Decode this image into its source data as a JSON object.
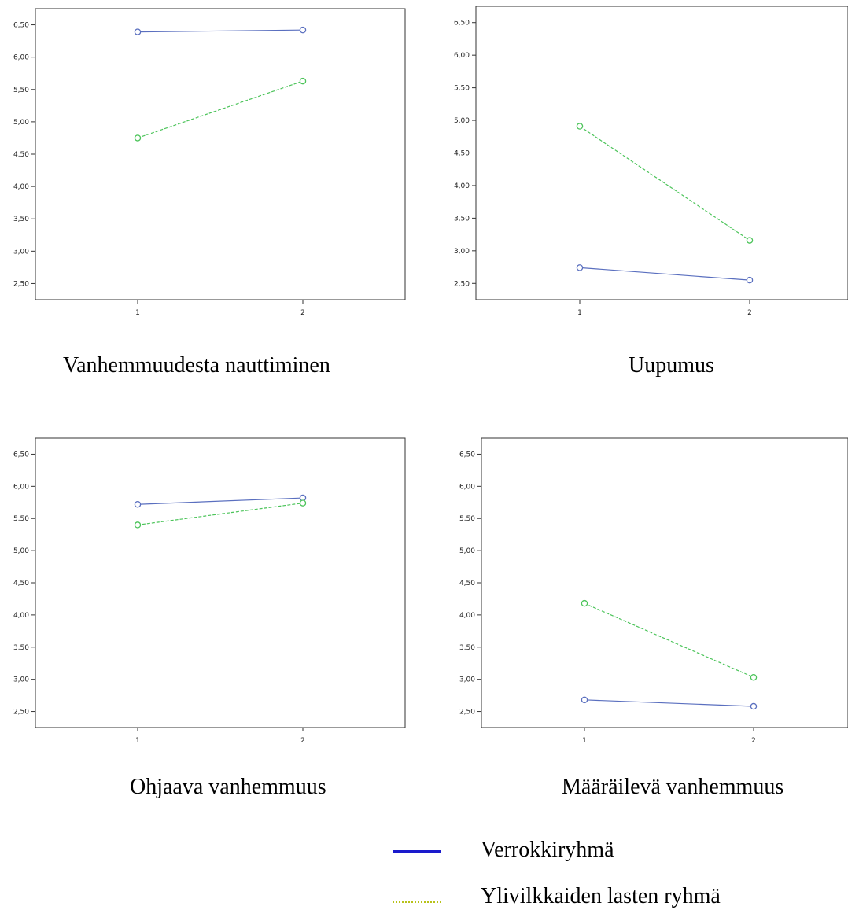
{
  "colors": {
    "series_control": "#5a6fbf",
    "series_adhd": "#4cc45a",
    "legend_control": "#1a1acc",
    "legend_adhd": "#b8c21a"
  },
  "chart_data": [
    {
      "type": "line",
      "caption": "Vanhemmuudesta nauttiminen",
      "x": [
        1,
        2
      ],
      "ylim": [
        2.25,
        6.75
      ],
      "yticks": [
        "2,50",
        "3,00",
        "3,50",
        "4,00",
        "4,50",
        "5,00",
        "5,50",
        "6,00",
        "6,50"
      ],
      "xticks": [
        "1",
        "2"
      ],
      "series": [
        {
          "key": "control",
          "values": [
            6.39,
            6.42
          ]
        },
        {
          "key": "adhd",
          "values": [
            4.75,
            5.63
          ]
        }
      ]
    },
    {
      "type": "line",
      "caption": "Uupumus",
      "x": [
        1,
        2
      ],
      "ylim": [
        2.25,
        6.75
      ],
      "yticks": [
        "2,50",
        "3,00",
        "3,50",
        "4,00",
        "4,50",
        "5,00",
        "5,50",
        "6,00",
        "6,50"
      ],
      "xticks": [
        "1",
        "2"
      ],
      "series": [
        {
          "key": "control",
          "values": [
            2.74,
            2.55
          ]
        },
        {
          "key": "adhd",
          "values": [
            4.91,
            3.16
          ]
        }
      ]
    },
    {
      "type": "line",
      "caption": "Ohjaava vanhemmuus",
      "x": [
        1,
        2
      ],
      "ylim": [
        2.25,
        6.75
      ],
      "yticks": [
        "2,50",
        "3,00",
        "3,50",
        "4,00",
        "4,50",
        "5,00",
        "5,50",
        "6,00",
        "6,50"
      ],
      "xticks": [
        "1",
        "2"
      ],
      "series": [
        {
          "key": "control",
          "values": [
            5.72,
            5.82
          ]
        },
        {
          "key": "adhd",
          "values": [
            5.4,
            5.74
          ]
        }
      ]
    },
    {
      "type": "line",
      "caption": "Määräilevä vanhemmuus",
      "x": [
        1,
        2
      ],
      "ylim": [
        2.25,
        6.75
      ],
      "yticks": [
        "2,50",
        "3,00",
        "3,50",
        "4,00",
        "4,50",
        "5,00",
        "5,50",
        "6,00",
        "6,50"
      ],
      "xticks": [
        "1",
        "2"
      ],
      "series": [
        {
          "key": "control",
          "values": [
            2.68,
            2.58
          ]
        },
        {
          "key": "adhd",
          "values": [
            4.18,
            3.03
          ]
        }
      ]
    }
  ],
  "legend": [
    {
      "key": "control",
      "label": "Verrokkiryhmä"
    },
    {
      "key": "adhd",
      "label": "Ylivilkkaiden lasten ryhmä"
    }
  ]
}
